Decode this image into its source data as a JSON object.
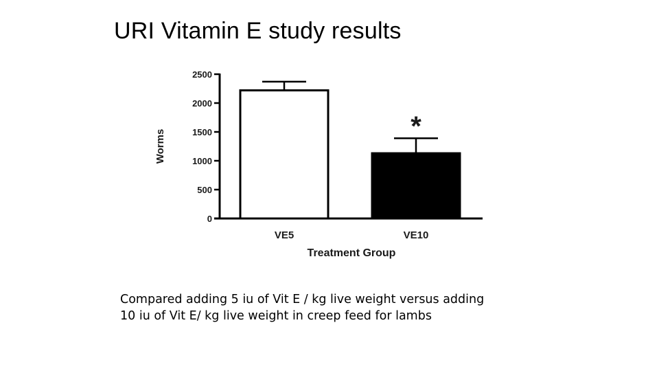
{
  "slide": {
    "title": "URI Vitamin E study results",
    "caption_line1": "Compared adding 5 iu of Vit E / kg live weight versus adding",
    "caption_line2": "10 iu of Vit E/ kg live weight in creep feed for lambs"
  },
  "chart_data": {
    "type": "bar",
    "categories": [
      "VE5",
      "VE10"
    ],
    "values": [
      2220,
      1130
    ],
    "error_upper": [
      2370,
      1390
    ],
    "bar_colors": [
      "#ffffff",
      "#000000"
    ],
    "xlabel": "Treatment Group",
    "ylabel": "Worms",
    "ylim": [
      0,
      2500
    ],
    "yticks": [
      0,
      500,
      1000,
      1500,
      2000,
      2500
    ],
    "ytick_labels": [
      "0",
      "500",
      "1000",
      "1500",
      "2000",
      "2500"
    ],
    "annotations": [
      {
        "category": "VE10",
        "text": "*"
      }
    ],
    "grid": false,
    "legend": "none"
  }
}
